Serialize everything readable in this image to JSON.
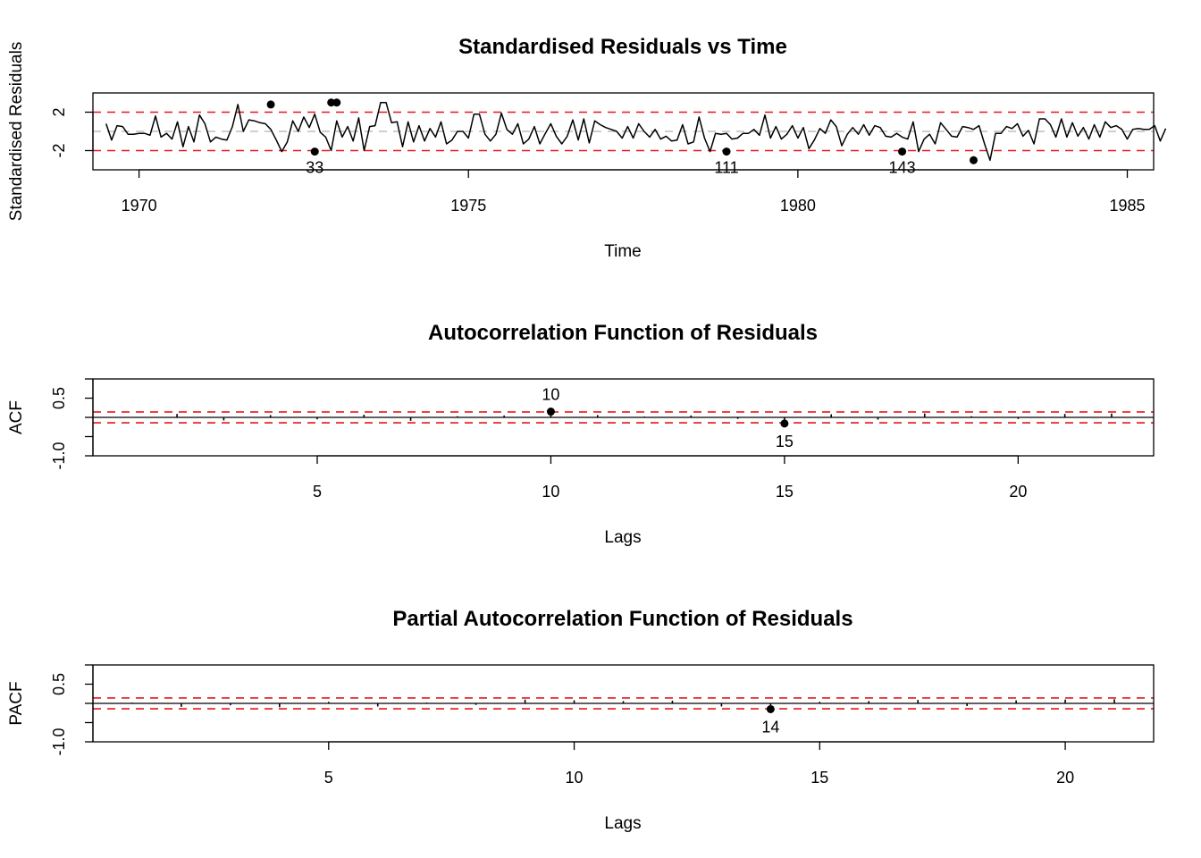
{
  "chart_data": [
    {
      "type": "line",
      "title": "Standardised Residuals vs Time",
      "xlabel": "Time",
      "ylabel": "Standardised Residuals",
      "xlim": [
        1969.3,
        1985.4
      ],
      "ylim": [
        -4.0,
        4.0
      ],
      "xticks": [
        "1970",
        "1975",
        "1980",
        "1985"
      ],
      "yticks": [
        "-2",
        "2"
      ],
      "x_start": 1969.5,
      "x_step": 0.0833333,
      "ref_lines": {
        "upper": 2,
        "lower": -2,
        "zero": 0
      },
      "values": [
        0.8,
        -0.9,
        0.6,
        0.5,
        -0.3,
        -0.3,
        -0.2,
        -0.2,
        -0.4,
        1.6,
        -0.6,
        -0.2,
        -0.8,
        1.0,
        -1.6,
        0.5,
        -1.1,
        1.7,
        0.8,
        -1.1,
        -0.6,
        -0.8,
        -0.9,
        0.5,
        2.8,
        0.0,
        1.2,
        1.1,
        0.9,
        0.8,
        0.2,
        -0.9,
        -2.1,
        -1.1,
        1.1,
        0.0,
        1.5,
        0.4,
        1.8,
        -0.1,
        -0.6,
        -2.0,
        1.1,
        -0.6,
        0.5,
        -1.0,
        1.4,
        -2.0,
        0.5,
        0.6,
        3.0,
        3.0,
        0.9,
        1.0,
        -1.6,
        1.0,
        -1.1,
        0.6,
        -1.0,
        0.3,
        -0.6,
        1.0,
        -1.3,
        -0.9,
        0.0,
        0.0,
        -0.7,
        1.8,
        1.8,
        -0.3,
        -1.0,
        -0.3,
        1.9,
        0.2,
        -0.3,
        0.8,
        -1.3,
        -0.8,
        0.5,
        -1.3,
        -0.2,
        0.8,
        -0.5,
        -1.3,
        -0.5,
        1.2,
        -0.9,
        1.3,
        -1.2,
        1.1,
        0.7,
        0.4,
        0.2,
        0.0,
        -0.7,
        0.5,
        -0.7,
        0.8,
        0.0,
        -0.6,
        0.2,
        -0.8,
        -0.5,
        -1.0,
        -0.9,
        0.7,
        -1.3,
        -1.1,
        1.5,
        -0.7,
        -2.1,
        -0.2,
        -0.3,
        -0.2,
        -0.8,
        -0.7,
        -0.2,
        -0.2,
        0.2,
        -0.4,
        1.7,
        -0.7,
        0.5,
        -0.8,
        -0.3,
        0.6,
        -0.7,
        0.4,
        -1.8,
        -0.9,
        0.3,
        -0.2,
        1.2,
        0.5,
        -1.5,
        -0.3,
        0.4,
        -0.3,
        0.7,
        -0.4,
        0.6,
        0.4,
        -0.5,
        -0.6,
        -0.2,
        -0.6,
        -0.8,
        1.0,
        -2.1,
        -0.8,
        -0.3,
        -1.3,
        0.9,
        0.2,
        -0.5,
        -0.6,
        0.5,
        0.4,
        0.2,
        0.6,
        -1.3,
        -3.0,
        -0.2,
        -0.2,
        0.5,
        0.3,
        0.8,
        -0.5,
        0.1,
        -1.3,
        1.3,
        1.3,
        0.7,
        -0.6,
        1.3,
        -0.6,
        0.9,
        -0.5,
        0.4,
        -0.8,
        0.7,
        -0.6,
        1.0,
        0.4,
        0.6,
        0.2,
        -0.8,
        0.2,
        0.3,
        0.2,
        0.2,
        0.6,
        -1.0,
        0.3
      ],
      "highlighted": [
        {
          "x": 1972.0,
          "y": 2.8
        },
        {
          "x": 1972.667,
          "y": -2.1,
          "label": "33"
        },
        {
          "x": 1972.917,
          "y": 3.0
        },
        {
          "x": 1973.0,
          "y": 3.0
        },
        {
          "x": 1978.917,
          "y": -2.1,
          "label": "111"
        },
        {
          "x": 1981.583,
          "y": -2.1,
          "label": "143"
        },
        {
          "x": 1982.667,
          "y": -3.0
        }
      ]
    },
    {
      "type": "bar",
      "title": "Autocorrelation Function of Residuals",
      "xlabel": "Lags",
      "ylabel": "ACF",
      "xlim": [
        0.2,
        22.9
      ],
      "ylim": [
        -1.0,
        1.0
      ],
      "xticks": [
        "5",
        "10",
        "15",
        "20"
      ],
      "yticks": [
        "-1.0",
        "0.5"
      ],
      "conf_bounds": [
        -0.14,
        0.14
      ],
      "lags": [
        1,
        2,
        3,
        4,
        5,
        6,
        7,
        8,
        9,
        10,
        11,
        12,
        13,
        14,
        15,
        16,
        17,
        18,
        19,
        20,
        21,
        22
      ],
      "values": [
        0.01,
        0.09,
        -0.08,
        0.06,
        -0.05,
        0.07,
        -0.09,
        0.03,
        0.05,
        0.15,
        0.06,
        0.02,
        0.05,
        -0.04,
        -0.16,
        0.08,
        -0.06,
        0.1,
        0.03,
        -0.04,
        0.09,
        0.1
      ],
      "highlighted": [
        {
          "lag": 10,
          "value": 0.15,
          "label": "10"
        },
        {
          "lag": 15,
          "value": -0.16,
          "label": "15"
        }
      ]
    },
    {
      "type": "bar",
      "title": "Partial Autocorrelation Function of Residuals",
      "xlabel": "Lags",
      "ylabel": "PACF",
      "xlim": [
        0.2,
        21.8
      ],
      "ylim": [
        -1.0,
        1.0
      ],
      "xticks": [
        "5",
        "10",
        "15",
        "20"
      ],
      "yticks": [
        "-1.0",
        "0.5"
      ],
      "conf_bounds": [
        -0.14,
        0.14
      ],
      "lags": [
        1,
        2,
        3,
        4,
        5,
        6,
        7,
        8,
        9,
        10,
        11,
        12,
        13,
        14,
        15,
        16,
        17,
        18,
        19,
        20,
        21
      ],
      "values": [
        0.02,
        -0.09,
        -0.05,
        -0.1,
        0.04,
        -0.08,
        0.02,
        -0.04,
        0.1,
        0.08,
        0.06,
        0.07,
        -0.08,
        -0.15,
        0.04,
        0.06,
        0.09,
        -0.07,
        0.08,
        0.1,
        0.11
      ],
      "highlighted": [
        {
          "lag": 14,
          "value": -0.15,
          "label": "14"
        }
      ]
    }
  ],
  "colors": {
    "series": "#000000",
    "reference": "#e8171b",
    "zero_line": "#bebebe"
  }
}
